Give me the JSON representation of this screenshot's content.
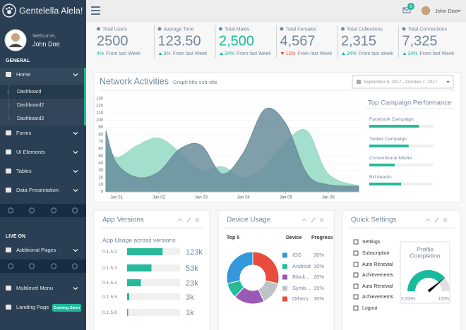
{
  "sidebar": {
    "brand": "Gentelella Alela!",
    "welcome": "Welcome,",
    "user": "John Doe",
    "section_general": "GENERAL",
    "menu_general": [
      "Home",
      "Forms",
      "UI Elements",
      "Tables",
      "Data Presentation"
    ],
    "submenu": [
      "Dashboard",
      "Dashboard2",
      "Dashboard3"
    ],
    "section_live": "LIVE ON",
    "menu_live": [
      "Additional Pages",
      "Multilevel Menu",
      "Landing Page"
    ],
    "badge": "Coming Soon"
  },
  "topbar": {
    "user": "John Doe",
    "notifications": 6
  },
  "stats": [
    {
      "label": "Total Users",
      "value": "2500",
      "color": "#73879C",
      "change": "4%",
      "direction": "none",
      "note": "From last Week"
    },
    {
      "label": "Average Time",
      "value": "123.50",
      "color": "#73879C",
      "change": "3%",
      "direction": "up",
      "note": "From last Week"
    },
    {
      "label": "Total Males",
      "value": "2,500",
      "color": "#1ABB9C",
      "change": "34%",
      "direction": "up",
      "note": "From last Week"
    },
    {
      "label": "Total Females",
      "value": "4,567",
      "color": "#73879C",
      "change": "12%",
      "direction": "down",
      "note": "From last Week"
    },
    {
      "label": "Total Collections",
      "value": "2,315",
      "color": "#73879C",
      "change": "34%",
      "direction": "up",
      "note": "From last Week"
    },
    {
      "label": "Total Connections",
      "value": "7,325",
      "color": "#73879C",
      "change": "34%",
      "direction": "up",
      "note": "From last Week"
    }
  ],
  "network": {
    "title": "Network Activities",
    "subtitle": "Graph title sub-title",
    "date_range": "September 8, 2017 - October 7, 2017",
    "chart": {
      "type": "area",
      "x": [
        0.75,
        1,
        1.5,
        2,
        2.5,
        3,
        3.5,
        4,
        4.5,
        5,
        5.5,
        6,
        6.72
      ],
      "xlim": [
        0.75,
        6.72
      ],
      "xticks": [
        {
          "value": 1,
          "label": "Jan 01"
        },
        {
          "value": 2,
          "label": "Jan 02"
        },
        {
          "value": 3,
          "label": "Jan 03"
        },
        {
          "value": 4,
          "label": "Jan 04"
        },
        {
          "value": 5,
          "label": "Jan 05"
        },
        {
          "value": 6,
          "label": "Jan 06"
        }
      ],
      "ylim": [
        0,
        130
      ],
      "yticks": [
        0,
        10,
        20,
        30,
        40,
        50,
        60,
        70,
        80,
        90,
        100,
        110,
        120,
        130
      ],
      "grid": true,
      "series": [
        {
          "color": "#9ADBC8",
          "values": [
            70,
            48,
            65,
            75,
            55,
            30,
            35,
            20,
            35,
            70,
            85,
            25,
            8
          ]
        },
        {
          "color": "#6A8E9C",
          "values": [
            85,
            40,
            20,
            28,
            60,
            65,
            25,
            55,
            115,
            95,
            25,
            10,
            8
          ]
        }
      ]
    },
    "campaigns": {
      "title": "Top Campaign Performance",
      "items": [
        {
          "name": "Facebook Campaign",
          "value": 78
        },
        {
          "name": "Twitter Campaign",
          "value": 62
        },
        {
          "name": "Conventional Media",
          "value": 40
        },
        {
          "name": "Bill boards",
          "value": 50
        }
      ]
    }
  },
  "app_versions": {
    "title": "App Versions",
    "subtitle": "App Usage across versions",
    "items": [
      {
        "version": "0.1.5.2",
        "value": 123000,
        "value_label": "123k",
        "progress": 67
      },
      {
        "version": "0.1.5.3",
        "value": 53000,
        "value_label": "53k",
        "progress": 46
      },
      {
        "version": "0.1.5.4",
        "value": 23000,
        "value_label": "23k",
        "progress": 26
      },
      {
        "version": "0.1.5.5",
        "value": 3000,
        "value_label": "3k",
        "progress": 4
      },
      {
        "version": "0.1.5.6",
        "value": 1000,
        "value_label": "1k",
        "progress": 2
      }
    ]
  },
  "device_usage": {
    "title": "Device Usage",
    "heading": "Top 5",
    "columns": [
      "Device",
      "Progress"
    ],
    "items": [
      {
        "name": "IOS",
        "value": 30,
        "label": "30%",
        "color": "#3498DB"
      },
      {
        "name": "Android",
        "value": 10,
        "label": "10%",
        "color": "#26B99A"
      },
      {
        "name": "Black...",
        "value": 20,
        "label": "20%",
        "color": "#9B59B6"
      },
      {
        "name": "Symb...",
        "value": 15,
        "label": "15%",
        "color": "#BDC3C7"
      },
      {
        "name": "Others",
        "value": 30,
        "label": "30%",
        "color": "#E74C3C"
      }
    ]
  },
  "quick_settings": {
    "title": "Quick Settings",
    "items": [
      "Settings",
      "Subscription",
      "Auto Renewal",
      "Achievements",
      "Auto Renewal",
      "Achievements",
      "Logout"
    ],
    "gauge": {
      "title_lines": [
        "Profile",
        "Completion"
      ],
      "min_label": "3,200%",
      "max_label": "100%",
      "value": 78
    }
  }
}
